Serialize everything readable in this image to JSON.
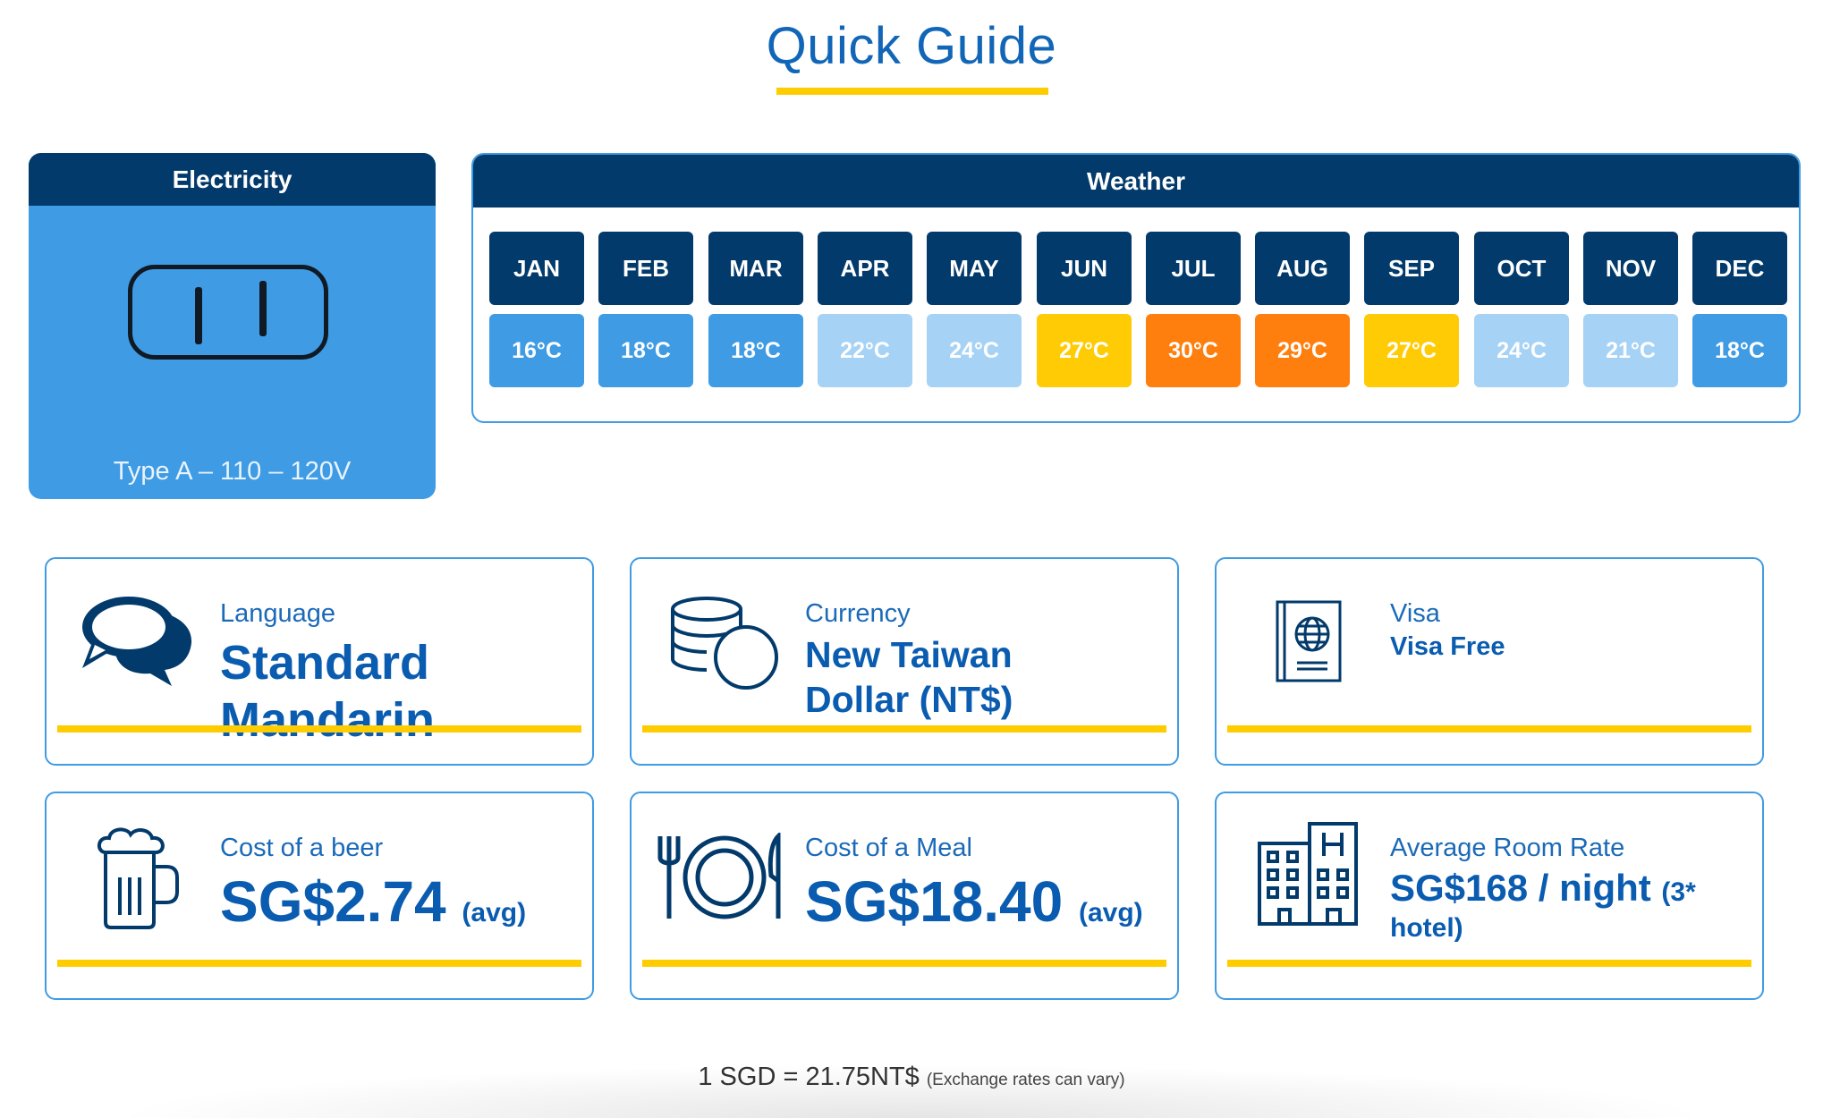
{
  "page": {
    "title": "Quick Guide"
  },
  "electricity": {
    "header": "Electricity",
    "type": "Type A – 110 – 120V"
  },
  "weather": {
    "header": "Weather",
    "months": [
      {
        "month": "JAN",
        "temp": "16°C",
        "color": "#3f9be3"
      },
      {
        "month": "FEB",
        "temp": "18°C",
        "color": "#3f9be3"
      },
      {
        "month": "MAR",
        "temp": "18°C",
        "color": "#3f9be3"
      },
      {
        "month": "APR",
        "temp": "22°C",
        "color": "#a6d2f5"
      },
      {
        "month": "MAY",
        "temp": "24°C",
        "color": "#a6d2f5"
      },
      {
        "month": "JUN",
        "temp": "27°C",
        "color": "#ffcb05"
      },
      {
        "month": "JUL",
        "temp": "30°C",
        "color": "#ff7f0e"
      },
      {
        "month": "AUG",
        "temp": "29°C",
        "color": "#ff7f0e"
      },
      {
        "month": "SEP",
        "temp": "27°C",
        "color": "#ffcb05"
      },
      {
        "month": "OCT",
        "temp": "24°C",
        "color": "#a6d2f5"
      },
      {
        "month": "NOV",
        "temp": "21°C",
        "color": "#a6d2f5"
      },
      {
        "month": "DEC",
        "temp": "18°C",
        "color": "#3f9be3"
      }
    ]
  },
  "language": {
    "label": "Language",
    "value_line1": "Standard",
    "value_line2": "Mandarin",
    "icon": "speech-bubbles-icon"
  },
  "currency": {
    "label": "Currency",
    "value_line1": "New Taiwan",
    "value_line2": "Dollar (NT$)",
    "icon": "coins-icon"
  },
  "visa": {
    "label": "Visa",
    "value": "Visa Free",
    "icon": "passport-icon"
  },
  "beer": {
    "label": "Cost of a beer",
    "value": "SG$2.74",
    "suffix": "(avg)",
    "icon": "beer-mug-icon"
  },
  "meal": {
    "label": "Cost of a Meal",
    "value": "SG$18.40",
    "suffix": "(avg)",
    "icon": "plate-cutlery-icon"
  },
  "room": {
    "label": "Average Room Rate",
    "value": "SG$168 / night",
    "suffix_line1": "(3*",
    "suffix_line2": "hotel)",
    "icon": "hotel-building-icon"
  },
  "footer": {
    "rate": "1 SGD = 21.75NT$",
    "note": "(Exchange rates can vary)"
  },
  "colors": {
    "navy": "#023a6b",
    "accent": "#ffcc00",
    "blue": "#3f9be3"
  }
}
